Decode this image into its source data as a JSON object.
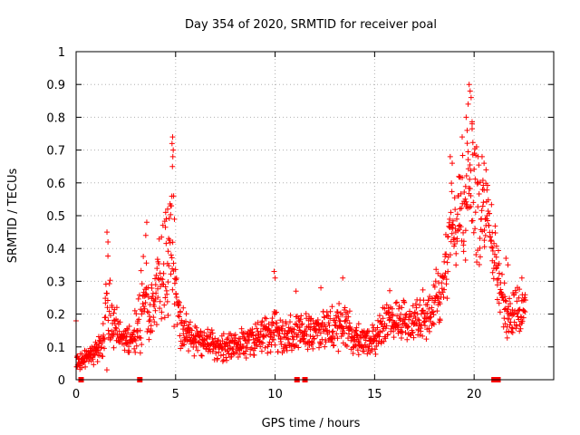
{
  "chart_data": {
    "type": "scatter",
    "title": "Day 354 of 2020, SRMTID for receiver poal",
    "xlabel": "GPS time / hours",
    "ylabel": "SRMTID / TECUs",
    "xlim": [
      0,
      24
    ],
    "ylim": [
      0,
      1
    ],
    "x_ticks": [
      0,
      5,
      10,
      15,
      20
    ],
    "x_tick_labels": [
      "0",
      "5",
      "10",
      "15",
      "20"
    ],
    "y_ticks": [
      0,
      0.1,
      0.2,
      0.3,
      0.4,
      0.5,
      0.6,
      0.7,
      0.8,
      0.9,
      1
    ],
    "y_tick_labels": [
      "0",
      "0.1",
      "0.2",
      "0.3",
      "0.4",
      "0.5",
      "0.6",
      "0.7",
      "0.8",
      "0.9",
      "1"
    ],
    "grid": true,
    "marker": "+",
    "color": "#ff0000",
    "series": [
      {
        "name": "SRMTID",
        "envelope": [
          [
            0.0,
            0.05,
            0.03
          ],
          [
            0.3,
            0.06,
            0.03
          ],
          [
            0.6,
            0.07,
            0.03
          ],
          [
            1.0,
            0.08,
            0.04
          ],
          [
            1.4,
            0.12,
            0.1
          ],
          [
            1.6,
            0.22,
            0.2
          ],
          [
            1.9,
            0.17,
            0.08
          ],
          [
            2.3,
            0.13,
            0.05
          ],
          [
            2.8,
            0.12,
            0.05
          ],
          [
            3.2,
            0.18,
            0.12
          ],
          [
            3.5,
            0.28,
            0.18
          ],
          [
            3.8,
            0.22,
            0.1
          ],
          [
            4.2,
            0.3,
            0.16
          ],
          [
            4.5,
            0.35,
            0.2
          ],
          [
            4.8,
            0.42,
            0.25
          ],
          [
            5.0,
            0.28,
            0.15
          ],
          [
            5.3,
            0.16,
            0.08
          ],
          [
            5.8,
            0.12,
            0.06
          ],
          [
            6.5,
            0.11,
            0.05
          ],
          [
            7.5,
            0.1,
            0.05
          ],
          [
            8.5,
            0.11,
            0.05
          ],
          [
            9.3,
            0.13,
            0.06
          ],
          [
            9.9,
            0.16,
            0.08
          ],
          [
            10.5,
            0.13,
            0.06
          ],
          [
            11.2,
            0.15,
            0.07
          ],
          [
            12.0,
            0.15,
            0.07
          ],
          [
            12.8,
            0.16,
            0.08
          ],
          [
            13.5,
            0.17,
            0.08
          ],
          [
            14.2,
            0.12,
            0.06
          ],
          [
            14.8,
            0.11,
            0.05
          ],
          [
            15.3,
            0.15,
            0.07
          ],
          [
            15.8,
            0.19,
            0.09
          ],
          [
            16.4,
            0.18,
            0.08
          ],
          [
            17.0,
            0.17,
            0.08
          ],
          [
            17.6,
            0.2,
            0.1
          ],
          [
            18.2,
            0.25,
            0.1
          ],
          [
            18.6,
            0.38,
            0.15
          ],
          [
            19.0,
            0.48,
            0.18
          ],
          [
            19.5,
            0.52,
            0.2
          ],
          [
            19.9,
            0.6,
            0.25
          ],
          [
            20.2,
            0.52,
            0.2
          ],
          [
            20.6,
            0.48,
            0.18
          ],
          [
            21.0,
            0.4,
            0.14
          ],
          [
            21.5,
            0.22,
            0.1
          ],
          [
            22.0,
            0.2,
            0.09
          ],
          [
            22.6,
            0.22,
            0.1
          ]
        ],
        "peaks": [
          [
            1.55,
            0.45
          ],
          [
            1.6,
            0.42
          ],
          [
            3.55,
            0.48
          ],
          [
            3.5,
            0.44
          ],
          [
            4.85,
            0.74
          ],
          [
            4.82,
            0.72
          ],
          [
            4.88,
            0.7
          ],
          [
            4.86,
            0.68
          ],
          [
            4.84,
            0.65
          ],
          [
            4.9,
            0.56
          ],
          [
            4.75,
            0.53
          ],
          [
            4.6,
            0.52
          ],
          [
            4.5,
            0.51
          ],
          [
            9.95,
            0.33
          ],
          [
            10.0,
            0.31
          ],
          [
            11.05,
            0.27
          ],
          [
            12.3,
            0.28
          ],
          [
            13.4,
            0.31
          ],
          [
            19.75,
            0.9
          ],
          [
            19.8,
            0.88
          ],
          [
            19.85,
            0.86
          ],
          [
            19.7,
            0.84
          ],
          [
            19.6,
            0.8
          ],
          [
            19.65,
            0.76
          ],
          [
            19.9,
            0.78
          ],
          [
            19.4,
            0.74
          ],
          [
            20.4,
            0.68
          ],
          [
            20.5,
            0.66
          ],
          [
            20.6,
            0.64
          ],
          [
            18.8,
            0.68
          ],
          [
            18.9,
            0.66
          ],
          [
            21.6,
            0.37
          ],
          [
            21.7,
            0.35
          ],
          [
            22.4,
            0.31
          ]
        ],
        "gaps": [
          [
            0.25,
            0.0
          ],
          [
            3.2,
            0.0
          ],
          [
            11.1,
            0.0
          ],
          [
            11.5,
            0.0
          ],
          [
            21.0,
            0.0
          ],
          [
            21.2,
            0.0
          ]
        ]
      }
    ]
  }
}
